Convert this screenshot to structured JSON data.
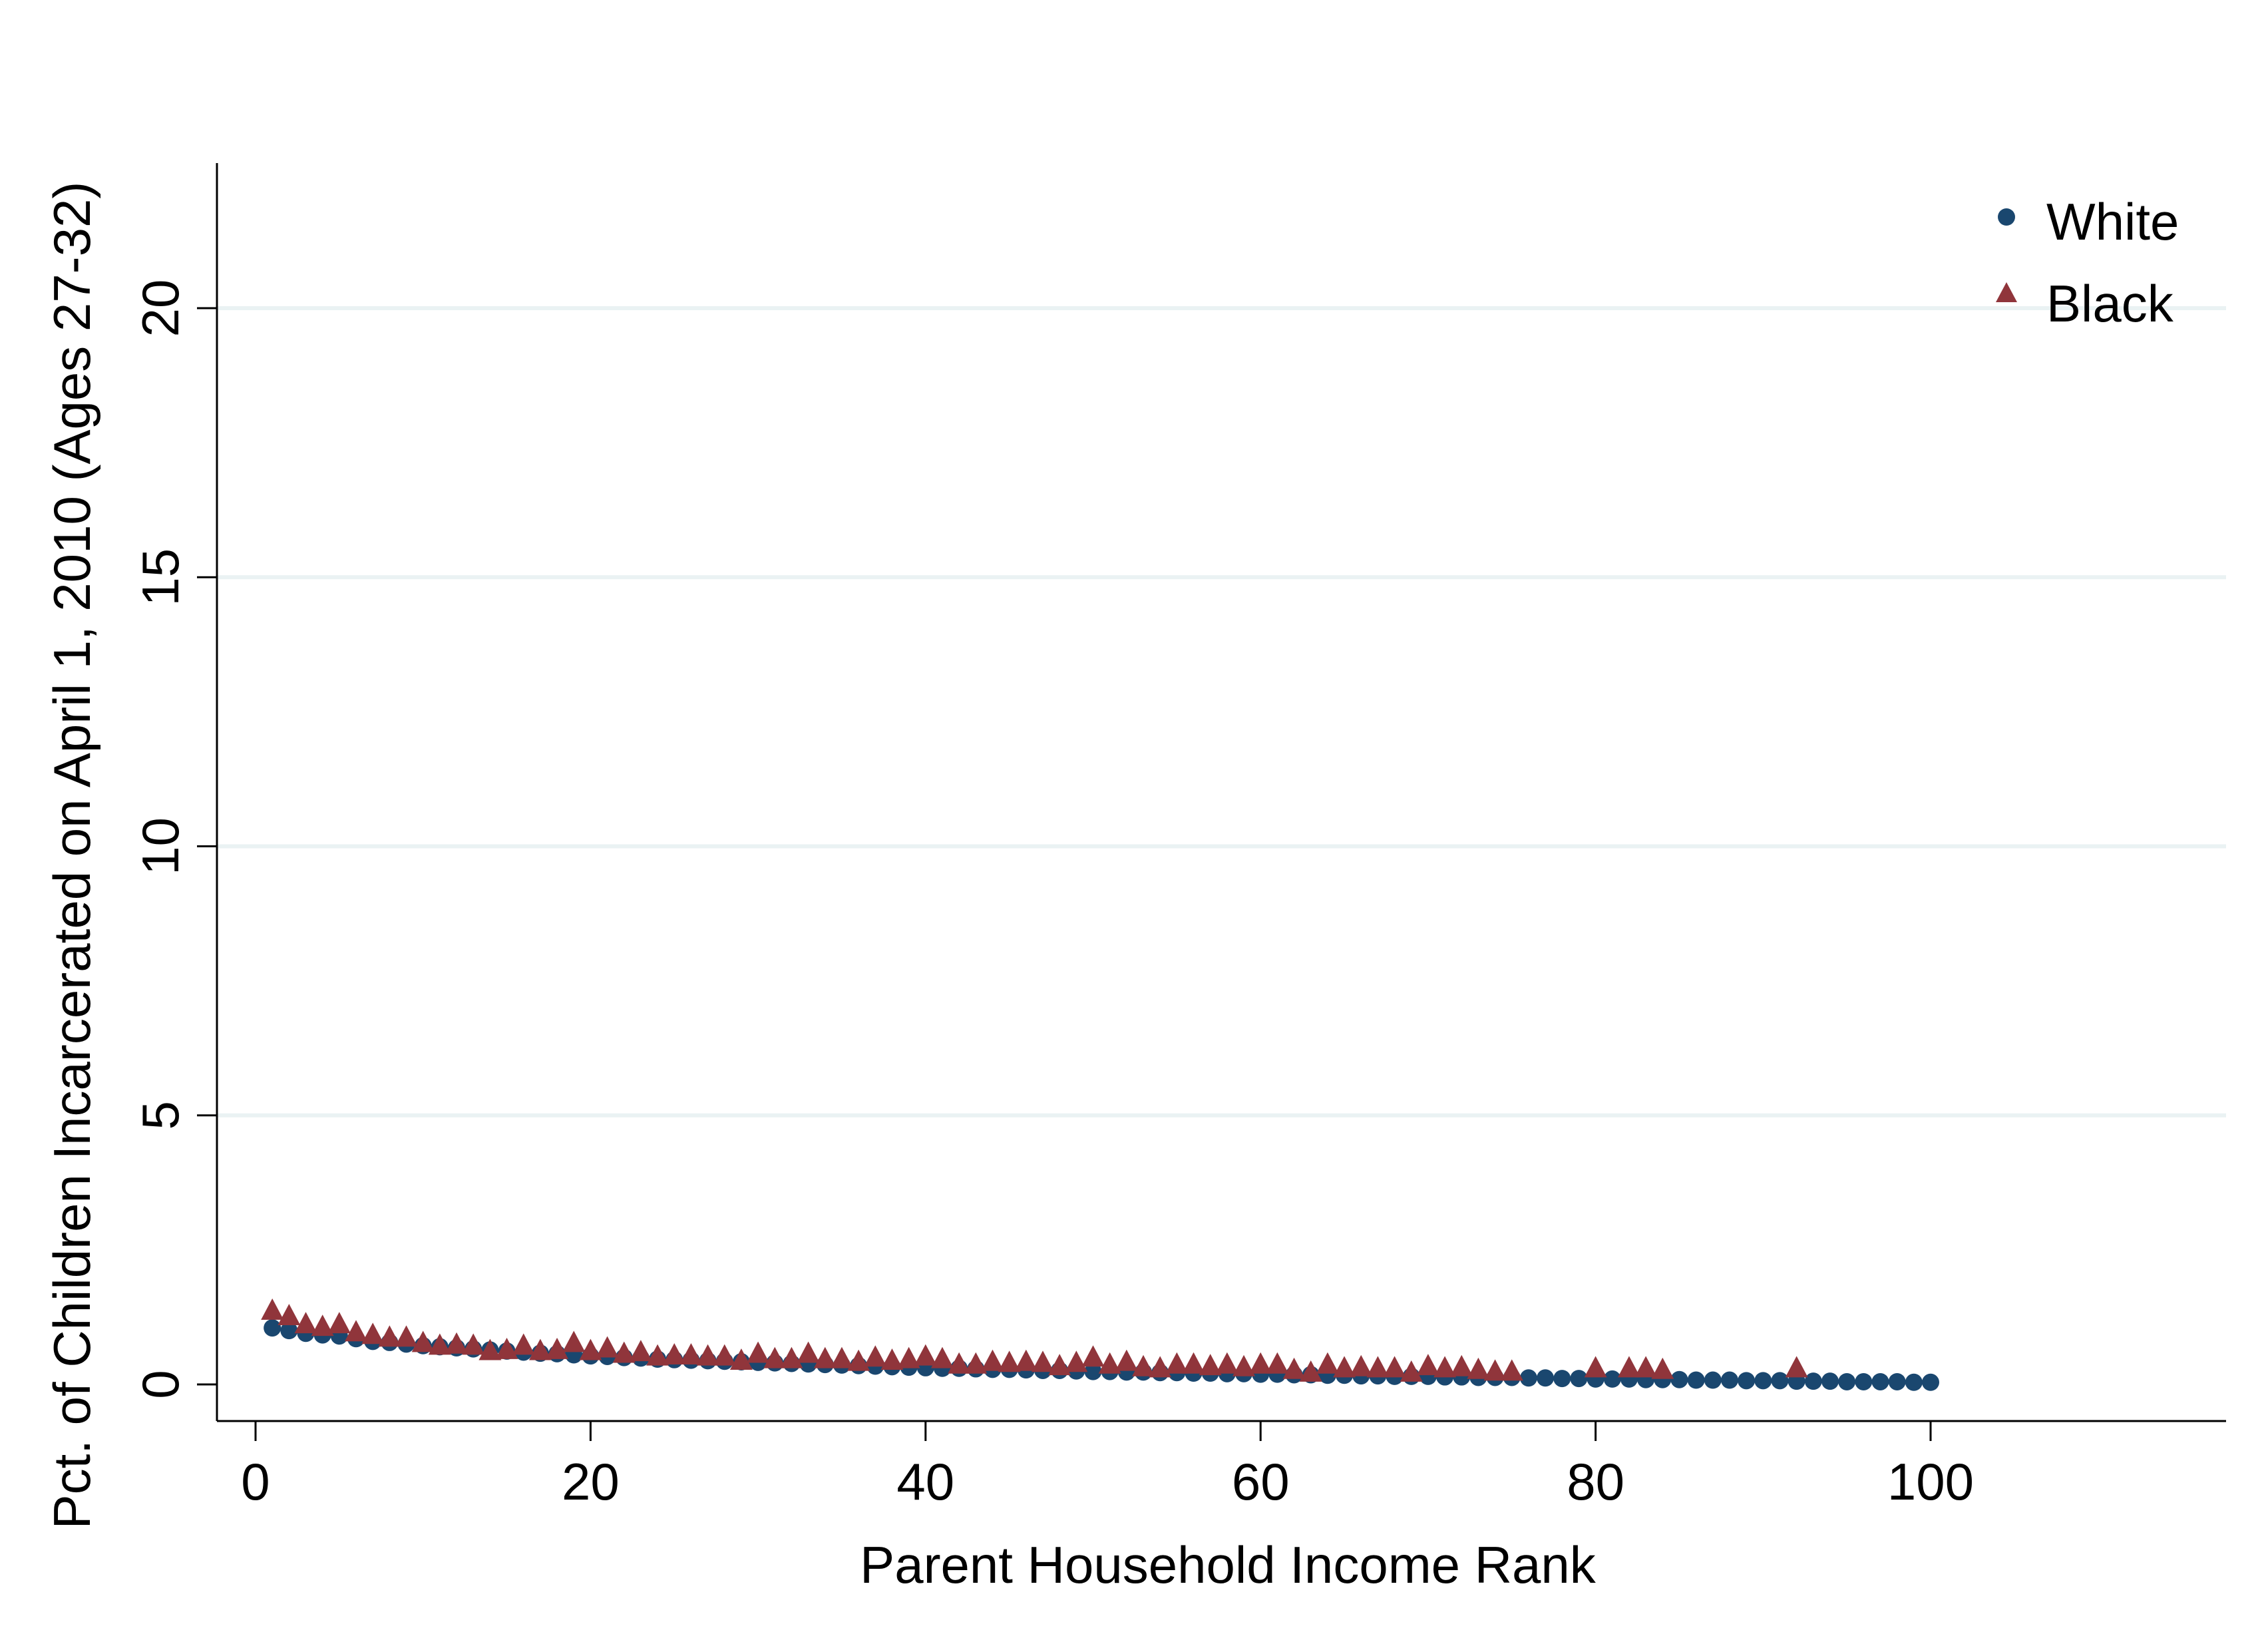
{
  "chart_data": {
    "type": "scatter",
    "title": "",
    "xlabel": "Parent Household Income Rank",
    "ylabel": "Pct. of Children Incarcerated on April 1, 2010 (Ages 27-32)",
    "xlim": [
      0,
      100
    ],
    "ylim": [
      0,
      22
    ],
    "xticks": [
      0,
      20,
      40,
      60,
      80,
      100
    ],
    "yticks": [
      0,
      5,
      10,
      15,
      20
    ],
    "xtick_labels": [
      "0",
      "20",
      "40",
      "60",
      "80",
      "100"
    ],
    "ytick_labels": [
      "0",
      "5",
      "10",
      "15",
      "20"
    ],
    "grid": "horizontal",
    "legend": "top-right",
    "series": [
      {
        "name": "White",
        "marker": "circle",
        "color": "#1a476f",
        "x": [
          1,
          2,
          3,
          4,
          5,
          6,
          7,
          8,
          9,
          10,
          11,
          12,
          13,
          14,
          15,
          16,
          17,
          18,
          19,
          20,
          21,
          22,
          23,
          24,
          25,
          26,
          27,
          28,
          29,
          30,
          31,
          32,
          33,
          34,
          35,
          36,
          37,
          38,
          39,
          40,
          41,
          42,
          43,
          44,
          45,
          46,
          47,
          48,
          49,
          50,
          51,
          52,
          53,
          54,
          55,
          56,
          57,
          58,
          59,
          60,
          61,
          62,
          63,
          64,
          65,
          66,
          67,
          68,
          69,
          70,
          71,
          72,
          73,
          74,
          75,
          76,
          77,
          78,
          79,
          80,
          81,
          82,
          83,
          84,
          85,
          86,
          87,
          88,
          89,
          90,
          91,
          92,
          93,
          94,
          95,
          96,
          97,
          98,
          99,
          100
        ],
        "y": [
          1.05,
          1.0,
          0.95,
          0.92,
          0.9,
          0.85,
          0.8,
          0.78,
          0.75,
          0.72,
          0.7,
          0.68,
          0.66,
          0.64,
          0.62,
          0.6,
          0.58,
          0.57,
          0.55,
          0.53,
          0.52,
          0.5,
          0.49,
          0.47,
          0.46,
          0.45,
          0.44,
          0.43,
          0.42,
          0.41,
          0.4,
          0.39,
          0.38,
          0.37,
          0.36,
          0.35,
          0.34,
          0.33,
          0.32,
          0.31,
          0.3,
          0.3,
          0.29,
          0.28,
          0.28,
          0.27,
          0.26,
          0.26,
          0.25,
          0.24,
          0.24,
          0.23,
          0.23,
          0.22,
          0.22,
          0.21,
          0.21,
          0.2,
          0.2,
          0.19,
          0.19,
          0.18,
          0.18,
          0.17,
          0.17,
          0.16,
          0.16,
          0.15,
          0.15,
          0.15,
          0.14,
          0.14,
          0.13,
          0.13,
          0.13,
          0.12,
          0.12,
          0.11,
          0.11,
          0.1,
          0.1,
          0.1,
          0.09,
          0.09,
          0.09,
          0.08,
          0.08,
          0.08,
          0.07,
          0.07,
          0.07,
          0.06,
          0.06,
          0.06,
          0.05,
          0.05,
          0.05,
          0.05,
          0.04,
          0.04
        ]
      },
      {
        "name": "Black",
        "marker": "triangle",
        "color": "#90353b",
        "x": [
          1,
          2,
          3,
          4,
          5,
          6,
          7,
          8,
          9,
          10,
          11,
          12,
          13,
          14,
          15,
          16,
          17,
          18,
          19,
          20,
          21,
          22,
          23,
          24,
          25,
          26,
          27,
          28,
          29,
          30,
          31,
          32,
          33,
          34,
          35,
          36,
          37,
          38,
          39,
          40,
          41,
          42,
          43,
          44,
          45,
          46,
          47,
          48,
          49,
          50,
          51,
          52,
          53,
          54,
          55,
          56,
          57,
          58,
          59,
          60,
          61,
          62,
          63,
          64,
          65,
          66,
          67,
          68,
          69,
          70,
          71,
          72,
          73,
          74,
          75,
          80,
          82,
          83,
          84,
          92
        ],
        "y": [
          1.35,
          1.25,
          1.1,
          1.05,
          1.1,
          0.95,
          0.9,
          0.85,
          0.85,
          0.75,
          0.7,
          0.72,
          0.7,
          0.6,
          0.62,
          0.7,
          0.6,
          0.62,
          0.75,
          0.6,
          0.65,
          0.55,
          0.58,
          0.5,
          0.52,
          0.52,
          0.5,
          0.5,
          0.42,
          0.55,
          0.45,
          0.45,
          0.55,
          0.45,
          0.45,
          0.4,
          0.48,
          0.42,
          0.45,
          0.5,
          0.45,
          0.35,
          0.35,
          0.4,
          0.38,
          0.4,
          0.38,
          0.32,
          0.38,
          0.48,
          0.35,
          0.4,
          0.3,
          0.28,
          0.35,
          0.35,
          0.32,
          0.35,
          0.3,
          0.35,
          0.35,
          0.25,
          0.2,
          0.35,
          0.28,
          0.3,
          0.28,
          0.28,
          0.2,
          0.32,
          0.28,
          0.3,
          0.25,
          0.22,
          0.22,
          0.28,
          0.28,
          0.28,
          0.25,
          0.28
        ]
      }
    ]
  }
}
